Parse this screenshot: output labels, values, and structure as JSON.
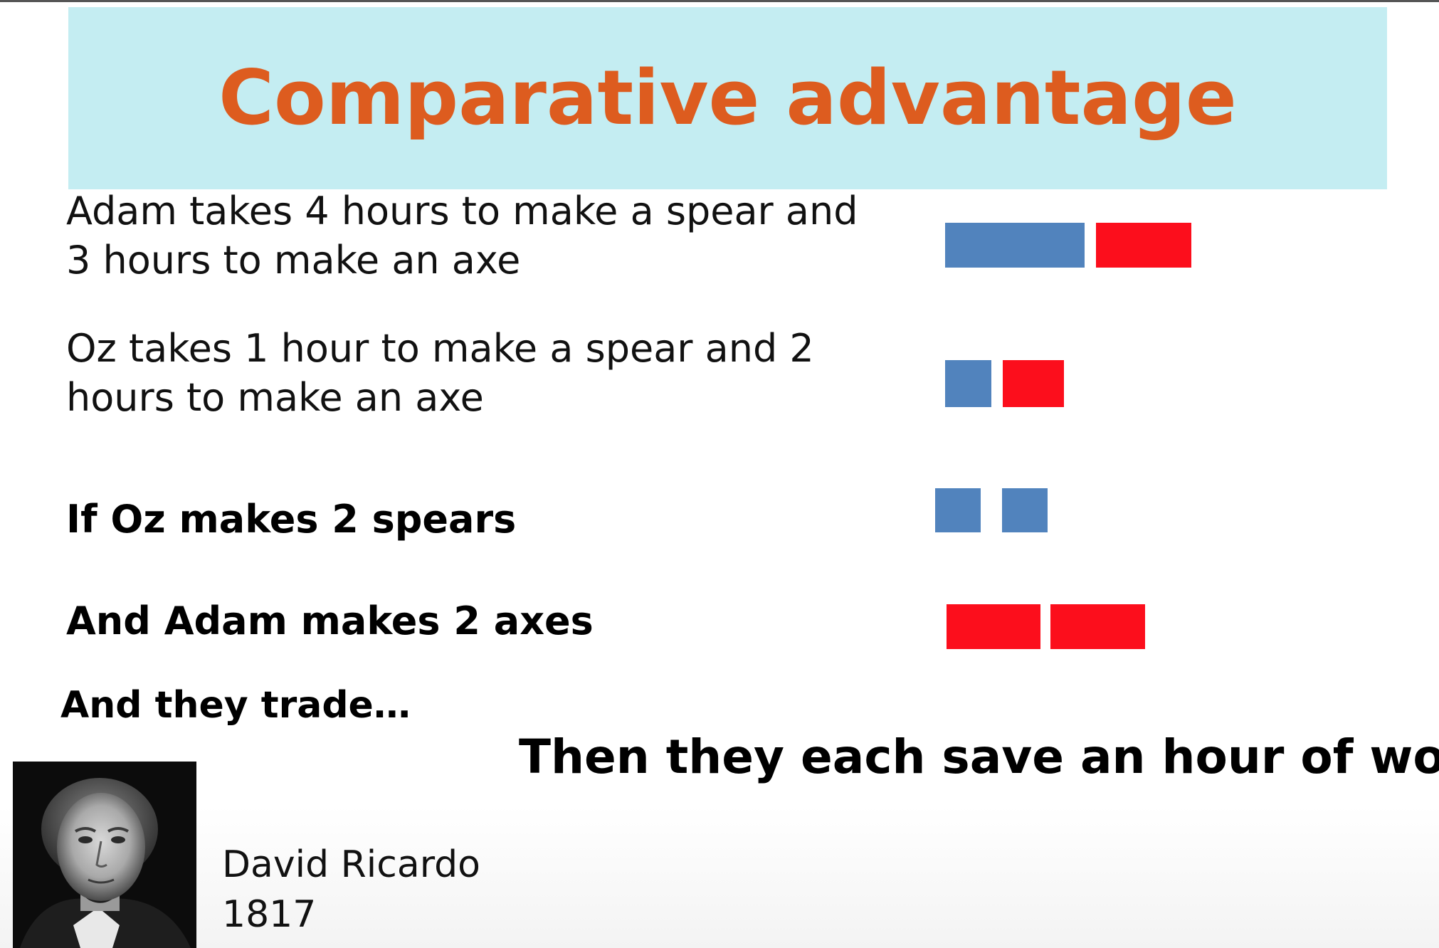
{
  "slide": {
    "title": "Comparative advantage",
    "statements": [
      {
        "line1": "Adam takes 4 hours to make a spear and",
        "line2": "3 hours to make an axe"
      },
      {
        "line1": "Oz takes 1 hour to make a spear and 2",
        "line2": "hours to make an axe"
      }
    ],
    "scenario": {
      "oz_line": "If Oz makes 2 spears",
      "adam_line": "And Adam makes 2 axes",
      "trade_line": "And they trade…",
      "conclusion": "Then they each save an hour of work"
    },
    "caption": {
      "name": "David Ricardo",
      "year": "1817"
    },
    "colors": {
      "title": "#dd5c1f",
      "title_band": "#c4edf2",
      "spear_block": "#5183bd",
      "axe_block": "#fc0e1c"
    },
    "legend_note": "blue block = spear hours, red block = axe hours",
    "block_rows": [
      {
        "row": "adam",
        "blocks": [
          {
            "item": "spear",
            "hours": 4
          },
          {
            "item": "axe",
            "hours": 3
          }
        ]
      },
      {
        "row": "oz",
        "blocks": [
          {
            "item": "spear",
            "hours": 1
          },
          {
            "item": "axe",
            "hours": 2
          }
        ]
      },
      {
        "row": "oz-two-spears",
        "blocks": [
          {
            "item": "spear",
            "hours": 1
          },
          {
            "item": "spear",
            "hours": 1
          }
        ]
      },
      {
        "row": "adam-two-axes",
        "blocks": [
          {
            "item": "axe",
            "hours": 3
          },
          {
            "item": "axe",
            "hours": 3
          }
        ]
      }
    ]
  }
}
